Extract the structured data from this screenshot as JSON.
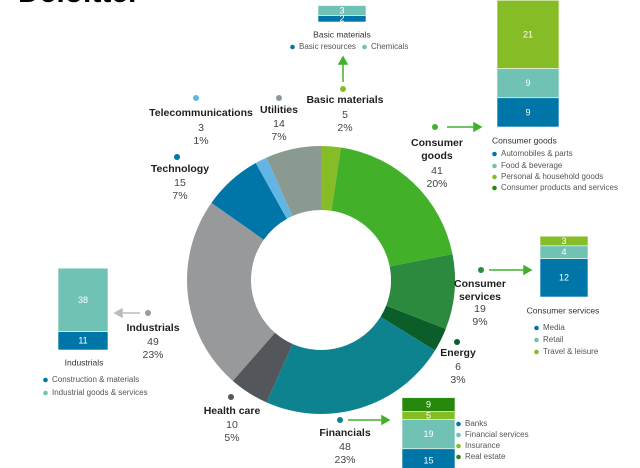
{
  "logo": "Deloitte.",
  "chart_data": {
    "type": "donut",
    "categories": [
      "Basic materials",
      "Consumer goods",
      "Consumer services",
      "Energy",
      "Financials",
      "Health care",
      "Industrials",
      "Technology",
      "Telecommunications",
      "Utilities"
    ],
    "values": [
      5,
      41,
      19,
      6,
      48,
      10,
      49,
      15,
      3,
      14
    ],
    "share_labels": [
      "2%",
      "20%",
      "9%",
      "3%",
      "23%",
      "5%",
      "23%",
      "7%",
      "1%",
      "7%"
    ],
    "colors": [
      "#86bc25",
      "#43b02a",
      "#2b8a3e",
      "#0b5e2a",
      "#0d8390",
      "#53565a",
      "#97999b",
      "#0076a8",
      "#62b5e5",
      "#8b9a90"
    ],
    "breakdowns": [
      {
        "sector": "Basic materials",
        "title": "Basic materials",
        "categories": [
          "Basic resources",
          "Chemicals"
        ],
        "values": [
          2,
          3
        ],
        "colors": [
          "#0076a8",
          "#6fc2b4"
        ]
      },
      {
        "sector": "Consumer goods",
        "title": "Consumer goods",
        "categories": [
          "Automobiles & parts",
          "Food & beverage",
          "Personal & household goods",
          "Consumer products and services"
        ],
        "values": [
          9,
          9,
          21,
          null
        ],
        "colors": [
          "#0076a8",
          "#6fc2b4",
          "#86bc25",
          "#26890d"
        ]
      },
      {
        "sector": "Consumer services",
        "title": "Consumer services",
        "categories": [
          "Media",
          "Retail",
          "Travel & leisure"
        ],
        "values": [
          12,
          4,
          3
        ],
        "colors": [
          "#0076a8",
          "#6fc2b4",
          "#86bc25"
        ]
      },
      {
        "sector": "Financials",
        "categories": [
          "Banks",
          "Financial services",
          "Insurance",
          "Real estate"
        ],
        "values": [
          15,
          19,
          5,
          9
        ],
        "colors": [
          "#0076a8",
          "#6fc2b4",
          "#86bc25",
          "#26890d"
        ]
      },
      {
        "sector": "Industrials",
        "title": "Industrials",
        "categories": [
          "Construction & materials",
          "Industrial goods & services"
        ],
        "values": [
          11,
          38
        ],
        "colors": [
          "#0076a8",
          "#6fc2b4"
        ]
      }
    ]
  }
}
